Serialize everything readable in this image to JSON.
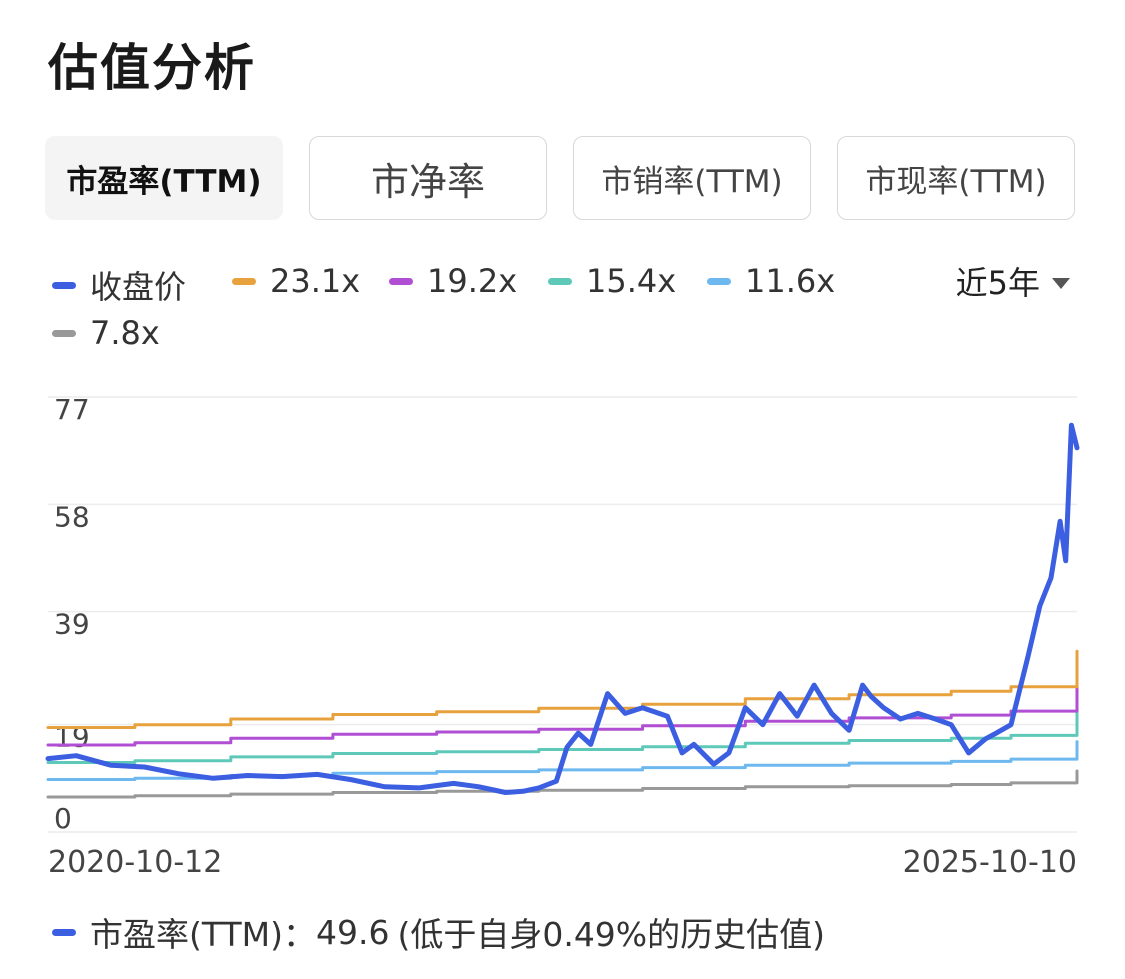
{
  "title": "估值分析",
  "tabs": [
    {
      "label": "市盈率(TTM)",
      "active": true
    },
    {
      "label": "市净率",
      "active": false
    },
    {
      "label": "市销率(TTM)",
      "active": false
    },
    {
      "label": "市现率(TTM)",
      "active": false
    }
  ],
  "range_selector": "近5年",
  "footer": {
    "label": "市盈率(TTM)：",
    "value": "49.6",
    "note": "(低于自身0.49%的历史估值)"
  },
  "colors": {
    "price": "#3b5fe0",
    "b231": "#e8a23d",
    "b192": "#b04fd4",
    "b154": "#5ec9b8",
    "b116": "#6db8ef",
    "b78": "#999999"
  },
  "chart_data": {
    "type": "line",
    "x_start": "2020-10-12",
    "x_end": "2025-10-10",
    "xlim": [
      "2020-10-12",
      "2025-10-10"
    ],
    "ylim": [
      0,
      77
    ],
    "y_ticks": [
      0,
      19,
      39,
      58,
      77
    ],
    "x_tick_labels": [
      "2020-10-12",
      "2025-10-10"
    ],
    "grid": true,
    "legend_placement": "top-left",
    "series": [
      {
        "name": "收盘价",
        "color": "#3b5fe0",
        "x": [
          "2020-10-12",
          "2020-12-01",
          "2021-02-01",
          "2021-04-01",
          "2021-06-01",
          "2021-08-01",
          "2021-10-01",
          "2021-12-01",
          "2022-02-01",
          "2022-04-01",
          "2022-06-01",
          "2022-08-01",
          "2022-10-01",
          "2022-11-15",
          "2023-01-01",
          "2023-02-01",
          "2023-03-01",
          "2023-04-01",
          "2023-04-20",
          "2023-05-10",
          "2023-06-01",
          "2023-07-01",
          "2023-08-01",
          "2023-09-01",
          "2023-10-15",
          "2023-11-10",
          "2023-12-01",
          "2024-01-05",
          "2024-02-01",
          "2024-03-01",
          "2024-04-01",
          "2024-05-01",
          "2024-06-01",
          "2024-07-01",
          "2024-08-01",
          "2024-09-01",
          "2024-09-25",
          "2024-10-10",
          "2024-11-01",
          "2024-12-01",
          "2025-01-01",
          "2025-02-01",
          "2025-03-01",
          "2025-04-01",
          "2025-05-01",
          "2025-05-20",
          "2025-06-15",
          "2025-07-15",
          "2025-08-05",
          "2025-08-25",
          "2025-09-10",
          "2025-09-20",
          "2025-09-30",
          "2025-10-10"
        ],
        "values": [
          13,
          13.5,
          11.8,
          11.5,
          10.3,
          9.5,
          10,
          9.8,
          10.2,
          9.3,
          8,
          7.8,
          8.6,
          8,
          7,
          7.2,
          7.8,
          9,
          15,
          17.5,
          15.5,
          24.5,
          21,
          22,
          20.5,
          14,
          15.5,
          12,
          14,
          22,
          19,
          24.5,
          20.5,
          26,
          21,
          18,
          26,
          24,
          22,
          20,
          21,
          20,
          19,
          14,
          16.5,
          17.5,
          19,
          31,
          40,
          45,
          55,
          48,
          72,
          68
        ]
      },
      {
        "name": "23.1x",
        "color": "#e8a23d",
        "x": [
          "2020-10-12",
          "2021-03-15",
          "2021-09-01",
          "2022-03-01",
          "2022-09-01",
          "2023-03-01",
          "2023-09-01",
          "2024-03-01",
          "2024-09-01",
          "2025-03-01",
          "2025-06-15",
          "2025-10-10"
        ],
        "values": [
          18.5,
          19.0,
          20.0,
          20.8,
          21.3,
          21.9,
          22.6,
          23.6,
          24.3,
          24.9,
          25.7,
          32.0
        ]
      },
      {
        "name": "19.2x",
        "color": "#b04fd4",
        "x": [
          "2020-10-12",
          "2021-03-15",
          "2021-09-01",
          "2022-03-01",
          "2022-09-01",
          "2023-03-01",
          "2023-09-01",
          "2024-03-01",
          "2024-09-01",
          "2025-03-01",
          "2025-06-15",
          "2025-10-10"
        ],
        "values": [
          15.4,
          15.8,
          16.6,
          17.3,
          17.7,
          18.2,
          18.8,
          19.6,
          20.2,
          20.7,
          21.4,
          26.6
        ]
      },
      {
        "name": "15.4x",
        "color": "#5ec9b8",
        "x": [
          "2020-10-12",
          "2021-03-15",
          "2021-09-01",
          "2022-03-01",
          "2022-09-01",
          "2023-03-01",
          "2023-09-01",
          "2024-03-01",
          "2024-09-01",
          "2025-03-01",
          "2025-06-15",
          "2025-10-10"
        ],
        "values": [
          12.3,
          12.6,
          13.3,
          13.9,
          14.2,
          14.6,
          15.1,
          15.7,
          16.2,
          16.6,
          17.1,
          21.3
        ]
      },
      {
        "name": "11.6x",
        "color": "#6db8ef",
        "x": [
          "2020-10-12",
          "2021-03-15",
          "2021-09-01",
          "2022-03-01",
          "2022-09-01",
          "2023-03-01",
          "2023-09-01",
          "2024-03-01",
          "2024-09-01",
          "2025-03-01",
          "2025-06-15",
          "2025-10-10"
        ],
        "values": [
          9.3,
          9.5,
          10.0,
          10.4,
          10.7,
          11.0,
          11.4,
          11.8,
          12.2,
          12.5,
          12.9,
          16.0
        ]
      },
      {
        "name": "7.8x",
        "color": "#999999",
        "x": [
          "2020-10-12",
          "2021-03-15",
          "2021-09-01",
          "2022-03-01",
          "2022-09-01",
          "2023-03-01",
          "2023-09-01",
          "2024-03-01",
          "2024-09-01",
          "2025-03-01",
          "2025-06-15",
          "2025-10-10"
        ],
        "values": [
          6.2,
          6.4,
          6.7,
          7.0,
          7.2,
          7.4,
          7.7,
          8.0,
          8.2,
          8.4,
          8.7,
          10.8
        ]
      }
    ]
  }
}
